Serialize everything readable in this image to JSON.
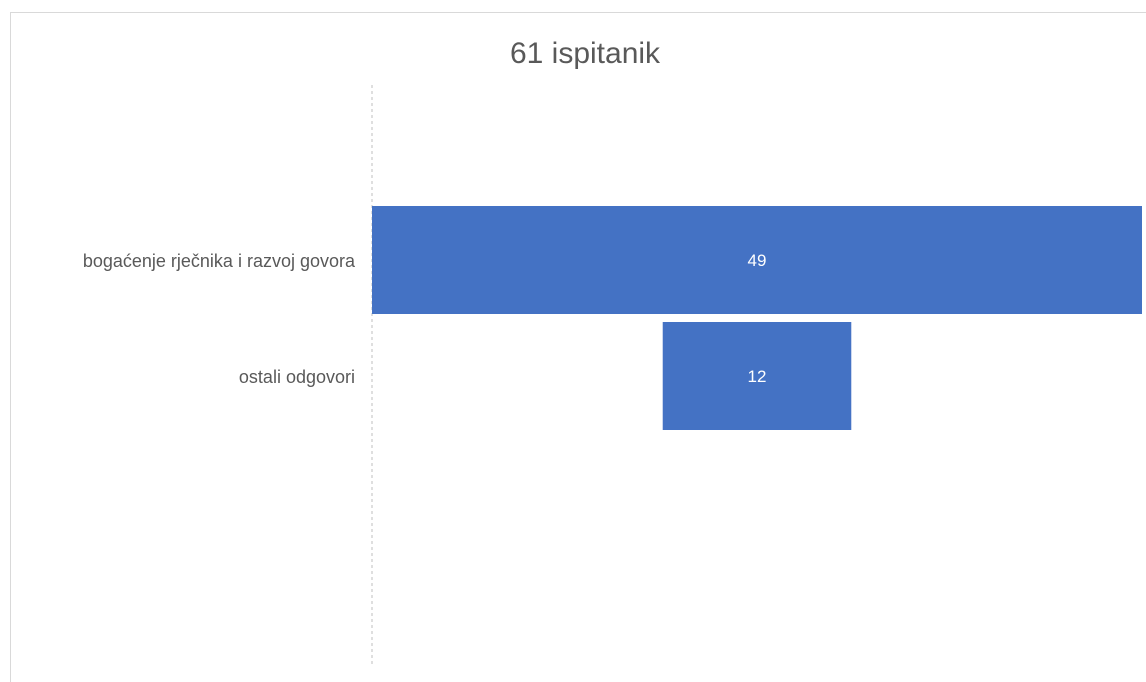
{
  "chart_data": {
    "type": "bar",
    "orientation": "horizontal",
    "style": "funnel",
    "title": "61 ispitanik",
    "categories": [
      "bogaćenje rječnika i razvoj govora",
      "ostali odgovori"
    ],
    "values": [
      49,
      12
    ],
    "xlabel": "",
    "ylabel": "",
    "grid": false,
    "legend": "none",
    "data_labels": true
  },
  "colors": {
    "bar": "#4472C4",
    "bar_label": "#ffffff",
    "category_text": "#595959",
    "title_text": "#595959",
    "axis_line": "#bfbfbf"
  }
}
